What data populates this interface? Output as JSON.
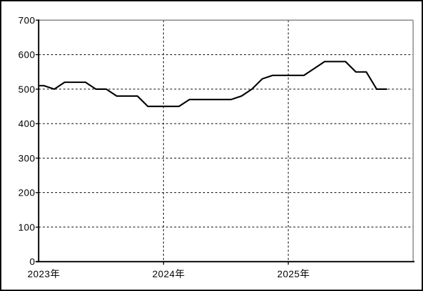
{
  "chart_data": {
    "type": "line",
    "title": "",
    "xlabel": "",
    "ylabel": "",
    "ylim": [
      0,
      700
    ],
    "y_ticks": [
      0,
      100,
      200,
      300,
      400,
      500,
      600,
      700
    ],
    "x_tick_labels": [
      "2023年",
      "2024年",
      "2025年"
    ],
    "x_granularity": "monthly",
    "x_span": "2023-01 to 2025-10",
    "values": [
      510,
      500,
      520,
      520,
      520,
      500,
      500,
      480,
      480,
      480,
      450,
      450,
      450,
      450,
      470,
      470,
      470,
      470,
      470,
      480,
      500,
      530,
      540,
      540,
      540,
      540,
      560,
      580,
      580,
      580,
      550,
      550,
      500,
      500
    ],
    "legend": "none",
    "grid": "dashed",
    "line_color": "#000000",
    "frame_color": "#808080",
    "background_color": "#ffffff"
  }
}
